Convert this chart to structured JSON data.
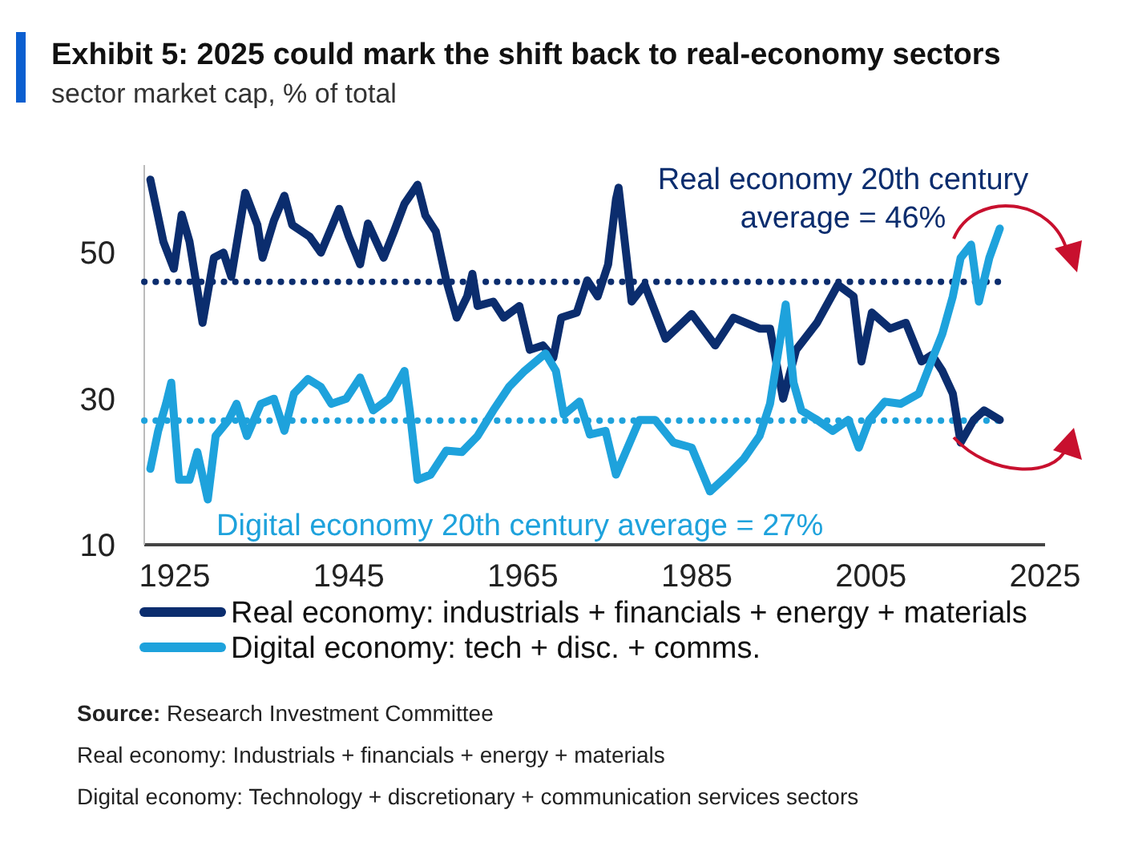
{
  "chart_data": {
    "type": "line",
    "title": "Exhibit 5: 2025 could mark the shift back to real-economy sectors",
    "subtitle": "sector market cap, % of total",
    "xlim": [
      1921.5,
      2025
    ],
    "xticks": [
      1925,
      1945,
      1965,
      1985,
      2005,
      2025
    ],
    "ylim": [
      10,
      62
    ],
    "yticks": [
      10,
      30,
      50
    ],
    "grid": false,
    "legend": "bottom",
    "line_style": "solid",
    "marker": "none",
    "series": [
      {
        "name": "Real economy: industrials + financials + energy + materials",
        "color": "#0b2d6e",
        "x": [
          1922.2,
          1923.7,
          1924.9,
          1925.8,
          1926.7,
          1927.6,
          1928.2,
          1929.5,
          1930.6,
          1931.5,
          1933.1,
          1934.5,
          1935.1,
          1936.4,
          1937.6,
          1938.5,
          1940.5,
          1941.8,
          1943.9,
          1945,
          1946.3,
          1947.2,
          1949,
          1950.2,
          1951.4,
          1952.9,
          1953.8,
          1955,
          1956.2,
          1957.4,
          1958.6,
          1959.2,
          1959.8,
          1961.6,
          1962.8,
          1964.6,
          1965.8,
          1967.3,
          1968.5,
          1969.4,
          1971.2,
          1972.4,
          1973.6,
          1974.8,
          1975.7,
          1976,
          1977.5,
          1979,
          1981.4,
          1984.4,
          1987.1,
          1989.2,
          1992.2,
          1993.4,
          1994.9,
          1996.4,
          1998.8,
          2001.2,
          2003,
          2003.9,
          2005.1,
          2007.2,
          2009,
          2010.8,
          2012,
          2013.2,
          2014.4,
          2015.3,
          2016.8,
          2018,
          2019.8
        ],
        "values": [
          60,
          51.5,
          47.8,
          55.2,
          51.5,
          44.9,
          40.4,
          49.3,
          50,
          46.7,
          58.2,
          53.8,
          49.3,
          54.4,
          57.8,
          53.8,
          52.2,
          50,
          56,
          52.2,
          48.4,
          54,
          49.3,
          52.9,
          56.7,
          59.3,
          55.1,
          52.9,
          46.2,
          41.1,
          44,
          47.1,
          42.7,
          43.3,
          41.1,
          42.7,
          36.7,
          37.3,
          35.6,
          41.1,
          41.8,
          46.2,
          44,
          48.4,
          57.3,
          58.9,
          43.3,
          45.6,
          38.2,
          41.6,
          37.3,
          41.1,
          39.6,
          39.6,
          30,
          36.7,
          40.4,
          45.6,
          44,
          35.1,
          41.8,
          39.6,
          40.4,
          35.1,
          36,
          33.8,
          30.7,
          24,
          27.1,
          28.4,
          27.1
        ]
      },
      {
        "name": "Digital economy: tech + disc. + comms.",
        "color": "#1ea2dc",
        "x": [
          1922.2,
          1923.1,
          1924,
          1924.6,
          1925.5,
          1926.7,
          1927.6,
          1928.8,
          1929.7,
          1931.2,
          1932.1,
          1933.3,
          1934.9,
          1936.4,
          1937.6,
          1938.7,
          1940.3,
          1941.8,
          1943,
          1944.7,
          1946.3,
          1947.8,
          1949.6,
          1951.4,
          1952,
          1952.9,
          1954.4,
          1956.2,
          1958,
          1959.8,
          1961.6,
          1963.4,
          1965.2,
          1967.6,
          1968.8,
          1969.7,
          1971.5,
          1972.7,
          1974.5,
          1975.7,
          1978.4,
          1980.2,
          1982.3,
          1984.4,
          1986.5,
          1988.6,
          1990.4,
          1992.2,
          1993.4,
          1995.2,
          1996.1,
          1997,
          1998.8,
          2000.6,
          2002.4,
          2003.6,
          2004.8,
          2006.6,
          2008.4,
          2010.5,
          2011.7,
          2013.2,
          2014.4,
          2015.3,
          2016.5,
          2017.4,
          2018.6,
          2019.8
        ],
        "values": [
          20.4,
          25.6,
          29.3,
          32.2,
          18.9,
          18.9,
          22.7,
          16.2,
          24.9,
          27.1,
          29.3,
          24.9,
          29.3,
          30,
          25.6,
          30.7,
          32.7,
          31.6,
          29.3,
          30,
          32.9,
          28.4,
          30,
          33.8,
          28.4,
          18.9,
          19.6,
          22.9,
          22.7,
          24.9,
          28.4,
          31.6,
          33.8,
          36.2,
          33.8,
          27.8,
          29.6,
          25.1,
          25.6,
          19.6,
          27.1,
          27.1,
          24,
          23.3,
          17.3,
          19.6,
          21.8,
          24.9,
          29.3,
          42.9,
          32.2,
          28.4,
          27.1,
          25.6,
          27.1,
          23.3,
          27.1,
          29.6,
          29.3,
          30.7,
          34.4,
          38.9,
          44,
          49.3,
          51.1,
          43.3,
          49.3,
          53.3
        ]
      }
    ],
    "ref_lines": [
      {
        "axis": "y",
        "value": 46,
        "label": "Real economy 20th century average = 46%",
        "color": "#0b2d6e",
        "line_style": "dotted"
      },
      {
        "axis": "y",
        "value": 27,
        "label": "Digital economy 20th century average = 27%",
        "color": "#1ea2dc",
        "line_style": "dotted"
      }
    ],
    "annotations": [
      "Source: Research Investment Committee",
      "Real economy: Industrials + financials + energy + materials",
      "Digital economy: Technology + discretionary + communication services sectors"
    ]
  }
}
